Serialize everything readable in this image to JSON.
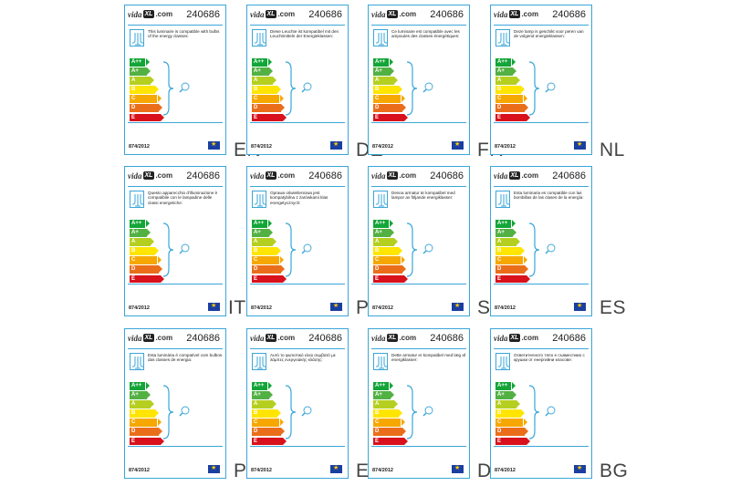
{
  "labels": [
    {
      "code": "EN",
      "text": "This luminaire is compatible with bulbs of the energy classes:"
    },
    {
      "code": "DE",
      "text": "Diese Leuchte ist kompatibel mit den Leuchtmitteln der Energieklassen:"
    },
    {
      "code": "FR",
      "text": "Ce luminaire est compatible avec les ampoules des classes énergétiques:"
    },
    {
      "code": "NL",
      "text": "Deze lamp is geschikt voor peren van de volgend energieklassen:"
    },
    {
      "code": "IT",
      "text": "Questo apparecchio d'illuminazione è compatibile con le lampadine delle classi energetiche:"
    },
    {
      "code": "PL",
      "text": "Oprawa oświetleniowa jest kompatybilna z żarówkami klas energetycznych:"
    },
    {
      "code": "SE",
      "text": "Denna armatur är kompatibel med lampor av följande energiklasser:"
    },
    {
      "code": "ES",
      "text": "Esta luminaria es compatible con las bombillas de las clases de la energía:"
    },
    {
      "code": "PT",
      "text": "Esta luminária é compatível com bulbos das classes de energia:"
    },
    {
      "code": "EL",
      "text": "Αυτό το φωτιστικό είναι συμβατό με λάμπες ενεργειακής κλάσης:"
    },
    {
      "code": "DA",
      "text": "Dette armatur er kompatibel med læg af energiklasser:"
    },
    {
      "code": "BG",
      "text": "Осветителното тяло е съвместимо с крушки от енергийни класове:"
    }
  ],
  "brand": {
    "a": "vida",
    "b": "XL",
    "c": ".com"
  },
  "product_number": "240686",
  "regulation": "874/2012",
  "classes": [
    {
      "label": "A++",
      "color": "#13a538"
    },
    {
      "label": "A+",
      "color": "#52b142"
    },
    {
      "label": "A",
      "color": "#b5cf21"
    },
    {
      "label": "B",
      "color": "#ffe500"
    },
    {
      "label": "C",
      "color": "#f6a800"
    },
    {
      "label": "D",
      "color": "#ea6e1a"
    },
    {
      "label": "E",
      "color": "#d8111c"
    }
  ]
}
